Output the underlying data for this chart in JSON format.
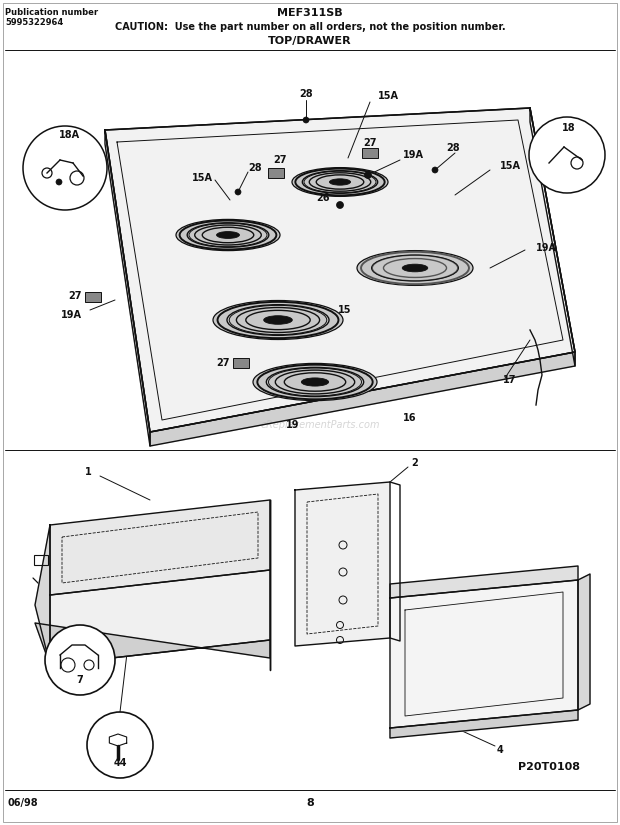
{
  "title": "MEF311SB",
  "pub_label": "Publication number",
  "pub_number": "5995322964",
  "caution": "CAUTION:  Use the part number on all orders, not the position number.",
  "section": "TOP/DRAWER",
  "footer_left": "06/98",
  "footer_center": "8",
  "footer_right": "P20T0108",
  "bg_color": "#ffffff",
  "dc": "#111111",
  "watermark": "eReplacementParts.com"
}
